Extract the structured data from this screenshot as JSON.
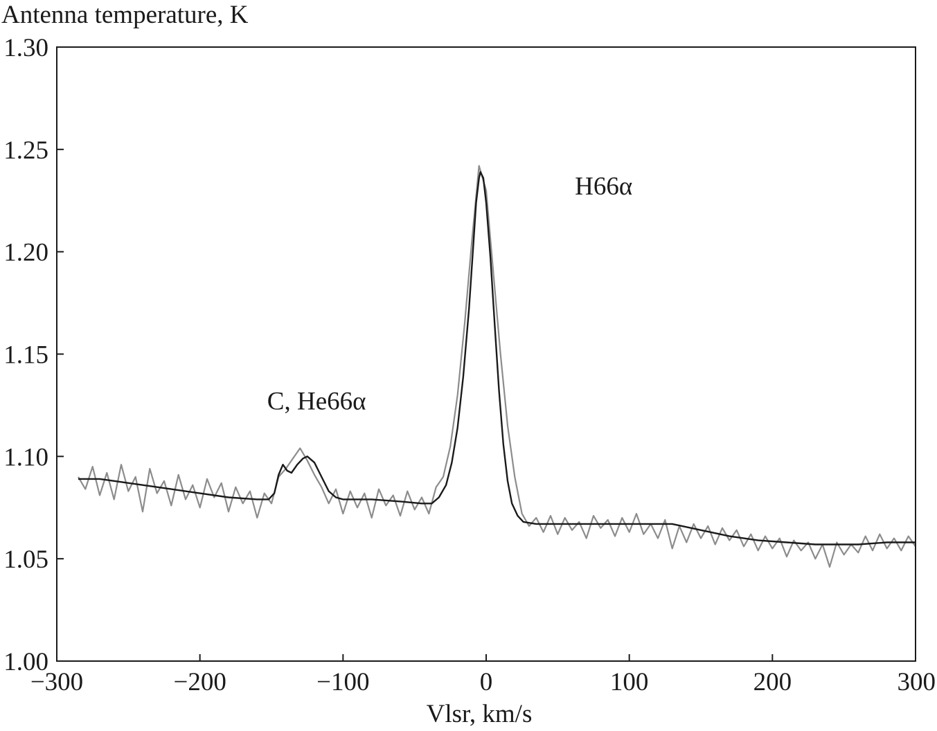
{
  "chart_data": {
    "type": "line",
    "title": "",
    "xlabel": "Vlsr, km/s",
    "ylabel": "Antenna temperature, K",
    "xlim": [
      -300,
      300
    ],
    "ylim": [
      1.0,
      1.3
    ],
    "xticks": [
      -300,
      -200,
      -100,
      0,
      100,
      200,
      300
    ],
    "xtick_labels": [
      "−300",
      "−200",
      "−100",
      "0",
      "100",
      "200",
      "300"
    ],
    "yticks": [
      1.0,
      1.05,
      1.1,
      1.15,
      1.2,
      1.25,
      1.3
    ],
    "ytick_labels": [
      "1.00",
      "1.05",
      "1.10",
      "1.15",
      "1.20",
      "1.25",
      "1.30"
    ],
    "grid": false,
    "annotations": [
      {
        "text": "H66α",
        "x": 62,
        "y": 1.228
      },
      {
        "text": "C, He66α",
        "x": -153,
        "y": 1.123
      }
    ],
    "series": [
      {
        "role": "observed spectrum",
        "color": "#8c8c8c",
        "x_range": [
          -285,
          300
        ],
        "points": [
          [
            -285,
            1.09
          ],
          [
            -280,
            1.084
          ],
          [
            -275,
            1.095
          ],
          [
            -270,
            1.081
          ],
          [
            -265,
            1.092
          ],
          [
            -260,
            1.079
          ],
          [
            -255,
            1.096
          ],
          [
            -250,
            1.083
          ],
          [
            -245,
            1.09
          ],
          [
            -240,
            1.073
          ],
          [
            -235,
            1.094
          ],
          [
            -230,
            1.082
          ],
          [
            -225,
            1.088
          ],
          [
            -220,
            1.076
          ],
          [
            -215,
            1.091
          ],
          [
            -210,
            1.079
          ],
          [
            -205,
            1.086
          ],
          [
            -200,
            1.075
          ],
          [
            -195,
            1.089
          ],
          [
            -190,
            1.08
          ],
          [
            -185,
            1.087
          ],
          [
            -180,
            1.073
          ],
          [
            -175,
            1.085
          ],
          [
            -170,
            1.077
          ],
          [
            -165,
            1.083
          ],
          [
            -160,
            1.07
          ],
          [
            -155,
            1.082
          ],
          [
            -150,
            1.077
          ],
          [
            -145,
            1.09
          ],
          [
            -140,
            1.094
          ],
          [
            -135,
            1.099
          ],
          [
            -130,
            1.104
          ],
          [
            -125,
            1.098
          ],
          [
            -120,
            1.091
          ],
          [
            -115,
            1.085
          ],
          [
            -110,
            1.077
          ],
          [
            -105,
            1.084
          ],
          [
            -100,
            1.072
          ],
          [
            -95,
            1.083
          ],
          [
            -90,
            1.075
          ],
          [
            -85,
            1.082
          ],
          [
            -80,
            1.07
          ],
          [
            -75,
            1.084
          ],
          [
            -70,
            1.076
          ],
          [
            -65,
            1.081
          ],
          [
            -60,
            1.071
          ],
          [
            -55,
            1.083
          ],
          [
            -50,
            1.074
          ],
          [
            -45,
            1.08
          ],
          [
            -40,
            1.072
          ],
          [
            -35,
            1.085
          ],
          [
            -30,
            1.09
          ],
          [
            -25,
            1.105
          ],
          [
            -20,
            1.13
          ],
          [
            -15,
            1.165
          ],
          [
            -10,
            1.205
          ],
          [
            -5,
            1.242
          ],
          [
            0,
            1.23
          ],
          [
            5,
            1.19
          ],
          [
            10,
            1.15
          ],
          [
            15,
            1.115
          ],
          [
            20,
            1.09
          ],
          [
            25,
            1.072
          ],
          [
            30,
            1.066
          ],
          [
            35,
            1.07
          ],
          [
            40,
            1.063
          ],
          [
            45,
            1.071
          ],
          [
            50,
            1.062
          ],
          [
            55,
            1.07
          ],
          [
            60,
            1.064
          ],
          [
            65,
            1.068
          ],
          [
            70,
            1.06
          ],
          [
            75,
            1.071
          ],
          [
            80,
            1.065
          ],
          [
            85,
            1.069
          ],
          [
            90,
            1.061
          ],
          [
            95,
            1.07
          ],
          [
            100,
            1.063
          ],
          [
            105,
            1.072
          ],
          [
            110,
            1.062
          ],
          [
            115,
            1.067
          ],
          [
            120,
            1.06
          ],
          [
            125,
            1.069
          ],
          [
            130,
            1.055
          ],
          [
            135,
            1.066
          ],
          [
            140,
            1.058
          ],
          [
            145,
            1.067
          ],
          [
            150,
            1.06
          ],
          [
            155,
            1.066
          ],
          [
            160,
            1.057
          ],
          [
            165,
            1.065
          ],
          [
            170,
            1.059
          ],
          [
            175,
            1.064
          ],
          [
            180,
            1.056
          ],
          [
            185,
            1.062
          ],
          [
            190,
            1.054
          ],
          [
            195,
            1.061
          ],
          [
            200,
            1.055
          ],
          [
            205,
            1.06
          ],
          [
            210,
            1.051
          ],
          [
            215,
            1.059
          ],
          [
            220,
            1.054
          ],
          [
            225,
            1.058
          ],
          [
            230,
            1.05
          ],
          [
            235,
            1.057
          ],
          [
            240,
            1.046
          ],
          [
            245,
            1.058
          ],
          [
            250,
            1.052
          ],
          [
            255,
            1.057
          ],
          [
            260,
            1.053
          ],
          [
            265,
            1.061
          ],
          [
            270,
            1.054
          ],
          [
            275,
            1.062
          ],
          [
            280,
            1.055
          ],
          [
            285,
            1.06
          ],
          [
            290,
            1.054
          ],
          [
            295,
            1.061
          ],
          [
            300,
            1.056
          ]
        ]
      },
      {
        "role": "fit",
        "color": "#1a1a1a",
        "points": [
          [
            -285,
            1.089
          ],
          [
            -270,
            1.089
          ],
          [
            -260,
            1.088
          ],
          [
            -240,
            1.086
          ],
          [
            -220,
            1.084
          ],
          [
            -200,
            1.082
          ],
          [
            -180,
            1.08
          ],
          [
            -160,
            1.079
          ],
          [
            -152,
            1.079
          ],
          [
            -148,
            1.082
          ],
          [
            -145,
            1.091
          ],
          [
            -142,
            1.096
          ],
          [
            -139,
            1.093
          ],
          [
            -136,
            1.092
          ],
          [
            -132,
            1.096
          ],
          [
            -128,
            1.099
          ],
          [
            -125,
            1.1
          ],
          [
            -120,
            1.097
          ],
          [
            -115,
            1.09
          ],
          [
            -110,
            1.083
          ],
          [
            -105,
            1.08
          ],
          [
            -100,
            1.079
          ],
          [
            -80,
            1.079
          ],
          [
            -60,
            1.078
          ],
          [
            -45,
            1.077
          ],
          [
            -38,
            1.077
          ],
          [
            -33,
            1.08
          ],
          [
            -28,
            1.086
          ],
          [
            -24,
            1.097
          ],
          [
            -20,
            1.114
          ],
          [
            -16,
            1.139
          ],
          [
            -12,
            1.172
          ],
          [
            -9,
            1.203
          ],
          [
            -7,
            1.224
          ],
          [
            -5,
            1.236
          ],
          [
            -4,
            1.239
          ],
          [
            -2,
            1.236
          ],
          [
            0,
            1.224
          ],
          [
            3,
            1.197
          ],
          [
            6,
            1.164
          ],
          [
            9,
            1.132
          ],
          [
            12,
            1.106
          ],
          [
            15,
            1.088
          ],
          [
            18,
            1.077
          ],
          [
            22,
            1.071
          ],
          [
            26,
            1.068
          ],
          [
            35,
            1.067
          ],
          [
            60,
            1.067
          ],
          [
            100,
            1.067
          ],
          [
            130,
            1.067
          ],
          [
            150,
            1.064
          ],
          [
            170,
            1.061
          ],
          [
            190,
            1.059
          ],
          [
            210,
            1.058
          ],
          [
            230,
            1.057
          ],
          [
            260,
            1.057
          ],
          [
            280,
            1.058
          ],
          [
            300,
            1.058
          ]
        ]
      }
    ]
  }
}
